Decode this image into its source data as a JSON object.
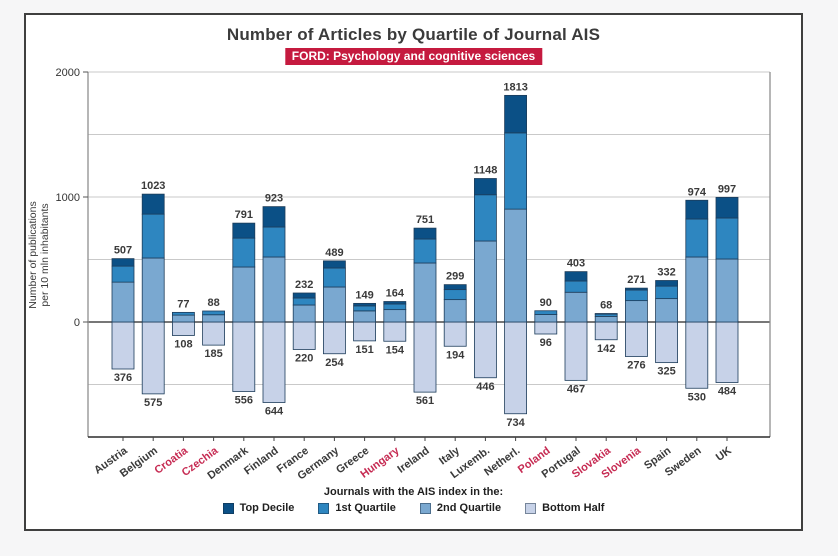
{
  "header": {
    "title": "Number of Articles by Quartile of Journal AIS",
    "badge": "FORD: Psychology and cognitive sciences",
    "badge_color": "#c51a3f"
  },
  "chart_data": {
    "type": "bar",
    "variant": "diverging-stacked",
    "title": "Number of Articles by Quartile of Journal AIS",
    "subtitle": "FORD: Psychology and cognitive sciences",
    "ylabel": "Number of publications per 10 mln inhabitants",
    "ylabel_lines": [
      "Number of publications",
      "per 10 mln inhabitants"
    ],
    "yticks": [
      0,
      1000,
      2000
    ],
    "ylim": [
      -920,
      2000
    ],
    "grid_interval": 500,
    "grid_on": true,
    "legend_title": "Journals with the AIS index in the:",
    "legend_position": "bottom",
    "series": [
      {
        "name": "Top Decile",
        "key": "top_decile",
        "color": "#0b5086"
      },
      {
        "name": "1st Quartile",
        "key": "q1",
        "color": "#2e86c0"
      },
      {
        "name": "2nd Quartile",
        "key": "q2",
        "color": "#7aa8d0"
      },
      {
        "name": "Bottom Half",
        "key": "bottom_half",
        "color": "#c7d2e8"
      }
    ],
    "colors": {
      "highlight_label": "#c62a52",
      "normal_label": "#3a3a3a",
      "bar_outline": "#1d3c5a",
      "gridline": "#c9c9c9",
      "zero_line": "#4a4a4a",
      "axis_line": "#2b2b2b",
      "panel_border": "#8f8f8f"
    },
    "countries": [
      {
        "label": "Austria",
        "highlighted": false,
        "above_total": 507,
        "below_total": 376,
        "segments": {
          "top_decile": 60,
          "q1": 128,
          "q2": 319,
          "bottom_half": 376
        }
      },
      {
        "label": "Belgium",
        "highlighted": false,
        "above_total": 1023,
        "below_total": 575,
        "segments": {
          "top_decile": 160,
          "q1": 351,
          "q2": 512,
          "bottom_half": 575
        }
      },
      {
        "label": "Croatia",
        "highlighted": true,
        "above_total": 77,
        "below_total": 108,
        "segments": {
          "top_decile": 0,
          "q1": 22,
          "q2": 55,
          "bottom_half": 108
        }
      },
      {
        "label": "Czechia",
        "highlighted": true,
        "above_total": 88,
        "below_total": 185,
        "segments": {
          "top_decile": 0,
          "q1": 30,
          "q2": 58,
          "bottom_half": 185
        }
      },
      {
        "label": "Denmark",
        "highlighted": false,
        "above_total": 791,
        "below_total": 556,
        "segments": {
          "top_decile": 120,
          "q1": 231,
          "q2": 440,
          "bottom_half": 556
        }
      },
      {
        "label": "Finland",
        "highlighted": false,
        "above_total": 923,
        "below_total": 644,
        "segments": {
          "top_decile": 163,
          "q1": 240,
          "q2": 520,
          "bottom_half": 644
        }
      },
      {
        "label": "France",
        "highlighted": false,
        "above_total": 232,
        "below_total": 220,
        "segments": {
          "top_decile": 40,
          "q1": 56,
          "q2": 136,
          "bottom_half": 220
        }
      },
      {
        "label": "Germany",
        "highlighted": false,
        "above_total": 489,
        "below_total": 254,
        "segments": {
          "top_decile": 57,
          "q1": 152,
          "q2": 280,
          "bottom_half": 254
        }
      },
      {
        "label": "Greece",
        "highlighted": false,
        "above_total": 149,
        "below_total": 151,
        "segments": {
          "top_decile": 20,
          "q1": 40,
          "q2": 89,
          "bottom_half": 151
        }
      },
      {
        "label": "Hungary",
        "highlighted": true,
        "above_total": 164,
        "below_total": 154,
        "segments": {
          "top_decile": 20,
          "q1": 45,
          "q2": 99,
          "bottom_half": 154
        }
      },
      {
        "label": "Ireland",
        "highlighted": false,
        "above_total": 751,
        "below_total": 561,
        "segments": {
          "top_decile": 87,
          "q1": 192,
          "q2": 472,
          "bottom_half": 561
        }
      },
      {
        "label": "Italy",
        "highlighted": false,
        "above_total": 299,
        "below_total": 194,
        "segments": {
          "top_decile": 40,
          "q1": 80,
          "q2": 179,
          "bottom_half": 194
        }
      },
      {
        "label": "Luxemb.",
        "highlighted": false,
        "above_total": 1148,
        "below_total": 446,
        "segments": {
          "top_decile": 130,
          "q1": 370,
          "q2": 648,
          "bottom_half": 446
        }
      },
      {
        "label": "Netherl.",
        "highlighted": false,
        "above_total": 1813,
        "below_total": 734,
        "segments": {
          "top_decile": 300,
          "q1": 610,
          "q2": 903,
          "bottom_half": 734
        }
      },
      {
        "label": "Poland",
        "highlighted": true,
        "above_total": 90,
        "below_total": 96,
        "segments": {
          "top_decile": 0,
          "q1": 30,
          "q2": 60,
          "bottom_half": 96
        }
      },
      {
        "label": "Portugal",
        "highlighted": false,
        "above_total": 403,
        "below_total": 467,
        "segments": {
          "top_decile": 75,
          "q1": 90,
          "q2": 238,
          "bottom_half": 467
        }
      },
      {
        "label": "Slovakia",
        "highlighted": true,
        "above_total": 68,
        "below_total": 142,
        "segments": {
          "top_decile": 5,
          "q1": 18,
          "q2": 45,
          "bottom_half": 142
        }
      },
      {
        "label": "Slovenia",
        "highlighted": true,
        "above_total": 271,
        "below_total": 276,
        "segments": {
          "top_decile": 15,
          "q1": 85,
          "q2": 171,
          "bottom_half": 276
        }
      },
      {
        "label": "Spain",
        "highlighted": false,
        "above_total": 332,
        "below_total": 325,
        "segments": {
          "top_decile": 45,
          "q1": 100,
          "q2": 187,
          "bottom_half": 325
        }
      },
      {
        "label": "Sweden",
        "highlighted": false,
        "above_total": 974,
        "below_total": 530,
        "segments": {
          "top_decile": 150,
          "q1": 304,
          "q2": 520,
          "bottom_half": 530
        }
      },
      {
        "label": "UK",
        "highlighted": false,
        "above_total": 997,
        "below_total": 484,
        "segments": {
          "top_decile": 165,
          "q1": 328,
          "q2": 504,
          "bottom_half": 484
        }
      }
    ]
  }
}
